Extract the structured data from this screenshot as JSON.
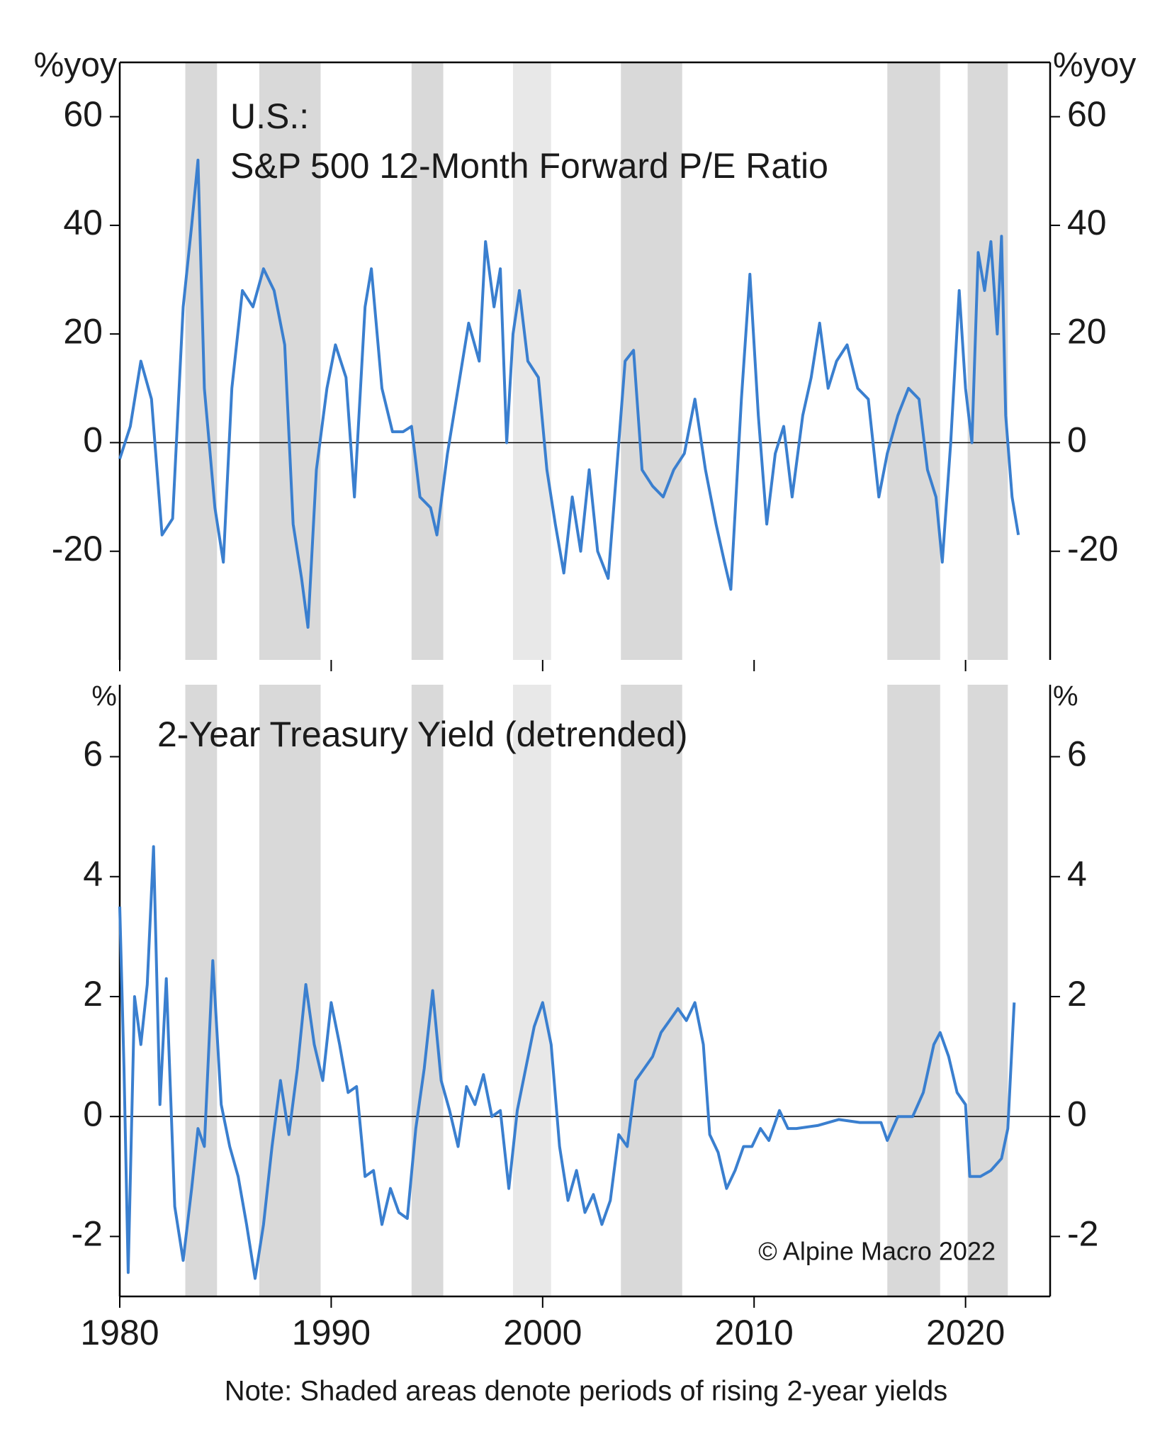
{
  "chart_data": [
    {
      "type": "line",
      "title": [
        "U.S.:",
        "S&P 500 12-Month Forward P/E Ratio"
      ],
      "y_label": "%yoy",
      "xlim": [
        1980,
        2024
      ],
      "ylim": [
        -40,
        70
      ],
      "yticks": [
        -20,
        0,
        20,
        40,
        60
      ],
      "zero_line": true,
      "shaded_periods": [
        {
          "start": 1983.1,
          "end": 1984.6,
          "color": "#d9d9d9"
        },
        {
          "start": 1986.6,
          "end": 1989.5,
          "color": "#d9d9d9"
        },
        {
          "start": 1993.8,
          "end": 1995.3,
          "color": "#d9d9d9"
        },
        {
          "start": 1998.6,
          "end": 2000.4,
          "color": "#e8e8e8"
        },
        {
          "start": 2003.7,
          "end": 2006.6,
          "color": "#d9d9d9"
        },
        {
          "start": 2016.3,
          "end": 2018.8,
          "color": "#d9d9d9"
        },
        {
          "start": 2020.1,
          "end": 2022.0,
          "color": "#d9d9d9"
        }
      ],
      "x": [
        1980,
        1980.5,
        1981,
        1981.5,
        1982,
        1982.5,
        1983,
        1983.4,
        1983.7,
        1984,
        1984.5,
        1984.9,
        1985.3,
        1985.8,
        1986.3,
        1986.8,
        1987.3,
        1987.8,
        1988.2,
        1988.6,
        1988.9,
        1989.3,
        1989.8,
        1990.2,
        1990.7,
        1991.1,
        1991.6,
        1991.9,
        1992.4,
        1992.9,
        1993.4,
        1993.8,
        1994.2,
        1994.7,
        1995,
        1995.5,
        1996,
        1996.5,
        1997,
        1997.3,
        1997.7,
        1998,
        1998.3,
        1998.6,
        1998.9,
        1999.3,
        1999.8,
        2000.2,
        2000.6,
        2001,
        2001.4,
        2001.8,
        2002.2,
        2002.6,
        2003.1,
        2003.5,
        2003.9,
        2004.3,
        2004.7,
        2005.2,
        2005.7,
        2006.2,
        2006.7,
        2007.2,
        2007.7,
        2008.2,
        2008.6,
        2008.9,
        2009.4,
        2009.8,
        2010.2,
        2010.6,
        2011,
        2011.4,
        2011.8,
        2012.3,
        2012.7,
        2013.1,
        2013.5,
        2013.9,
        2014.4,
        2014.9,
        2015.4,
        2015.9,
        2016.3,
        2016.8,
        2017.3,
        2017.8,
        2018.2,
        2018.6,
        2018.9,
        2019.3,
        2019.7,
        2020,
        2020.3,
        2020.6,
        2020.9,
        2021.2,
        2021.5,
        2021.7,
        2021.9,
        2022.2,
        2022.5
      ],
      "series": [
        {
          "color": "#3a7fcf",
          "values": [
            -3,
            3,
            15,
            8,
            -17,
            -14,
            25,
            40,
            52,
            10,
            -12,
            -22,
            10,
            28,
            25,
            32,
            28,
            18,
            -15,
            -25,
            -34,
            -5,
            10,
            18,
            12,
            -10,
            25,
            32,
            10,
            2,
            2,
            3,
            -10,
            -12,
            -17,
            -2,
            10,
            22,
            15,
            37,
            25,
            32,
            0,
            20,
            28,
            15,
            12,
            -5,
            -15,
            -24,
            -10,
            -20,
            -5,
            -20,
            -25,
            -5,
            15,
            17,
            -5,
            -8,
            -10,
            -5,
            -2,
            8,
            -5,
            -15,
            -22,
            -27,
            8,
            31,
            5,
            -15,
            -2,
            3,
            -10,
            5,
            12,
            22,
            10,
            15,
            18,
            10,
            8,
            -10,
            -2,
            5,
            10,
            8,
            -5,
            -10,
            -22,
            0,
            28,
            10,
            0,
            35,
            28,
            37,
            20,
            38,
            5,
            -10,
            -17
          ]
        }
      ]
    },
    {
      "type": "line",
      "title": [
        "2-Year Treasury Yield (detrended)"
      ],
      "y_label": "%",
      "xlim": [
        1980,
        2024
      ],
      "xticks": [
        1980,
        1990,
        2000,
        2010,
        2020
      ],
      "ylim": [
        -3,
        7.2
      ],
      "yticks": [
        -2,
        0,
        2,
        4,
        6
      ],
      "zero_line": true,
      "annotation": "© Alpine Macro 2022",
      "note": "Note: Shaded areas denote periods of rising 2-year yields",
      "shaded_periods": [
        {
          "start": 1983.1,
          "end": 1984.6,
          "color": "#d9d9d9"
        },
        {
          "start": 1986.6,
          "end": 1989.5,
          "color": "#d9d9d9"
        },
        {
          "start": 1993.8,
          "end": 1995.3,
          "color": "#d9d9d9"
        },
        {
          "start": 1998.6,
          "end": 2000.4,
          "color": "#e8e8e8"
        },
        {
          "start": 2003.7,
          "end": 2006.6,
          "color": "#d9d9d9"
        },
        {
          "start": 2016.3,
          "end": 2018.8,
          "color": "#d9d9d9"
        },
        {
          "start": 2020.1,
          "end": 2022.0,
          "color": "#d9d9d9"
        }
      ],
      "x": [
        1980,
        1980.2,
        1980.4,
        1980.7,
        1981,
        1981.3,
        1981.6,
        1981.9,
        1982.2,
        1982.6,
        1983,
        1983.4,
        1983.7,
        1984,
        1984.4,
        1984.8,
        1985.2,
        1985.6,
        1986,
        1986.4,
        1986.8,
        1987.2,
        1987.6,
        1988,
        1988.4,
        1988.8,
        1989.2,
        1989.6,
        1990,
        1990.4,
        1990.8,
        1991.2,
        1991.6,
        1992,
        1992.4,
        1992.8,
        1993.2,
        1993.6,
        1994,
        1994.4,
        1994.8,
        1995.2,
        1995.6,
        1996,
        1996.4,
        1996.8,
        1997.2,
        1997.6,
        1998,
        1998.4,
        1998.8,
        1999.2,
        1999.6,
        2000,
        2000.4,
        2000.8,
        2001.2,
        2001.6,
        2002,
        2002.4,
        2002.8,
        2003.2,
        2003.6,
        2004,
        2004.4,
        2004.8,
        2005.2,
        2005.6,
        2006,
        2006.4,
        2006.8,
        2007.2,
        2007.6,
        2007.9,
        2008.3,
        2008.7,
        2009.1,
        2009.5,
        2009.9,
        2010.3,
        2010.7,
        2011.2,
        2011.6,
        2012,
        2013,
        2014,
        2015,
        2016,
        2016.3,
        2016.8,
        2017.5,
        2018,
        2018.5,
        2018.8,
        2019.2,
        2019.6,
        2020,
        2020.2,
        2020.7,
        2021.2,
        2021.7,
        2022,
        2022.3
      ],
      "series": [
        {
          "color": "#3a7fcf",
          "values": [
            3.5,
            0.8,
            -2.6,
            2.0,
            1.2,
            2.2,
            4.5,
            0.2,
            2.3,
            -1.5,
            -2.4,
            -1.2,
            -0.2,
            -0.5,
            2.6,
            0.2,
            -0.5,
            -1.0,
            -1.8,
            -2.7,
            -1.8,
            -0.5,
            0.6,
            -0.3,
            0.8,
            2.2,
            1.2,
            0.6,
            1.9,
            1.2,
            0.4,
            0.5,
            -1.0,
            -0.9,
            -1.8,
            -1.2,
            -1.6,
            -1.7,
            -0.2,
            0.8,
            2.1,
            0.6,
            0.1,
            -0.5,
            0.5,
            0.2,
            0.7,
            0.0,
            0.1,
            -1.2,
            0.1,
            0.8,
            1.5,
            1.9,
            1.2,
            -0.5,
            -1.4,
            -0.9,
            -1.6,
            -1.3,
            -1.8,
            -1.4,
            -0.3,
            -0.5,
            0.6,
            0.8,
            1.0,
            1.4,
            1.6,
            1.8,
            1.6,
            1.9,
            1.2,
            -0.3,
            -0.6,
            -1.2,
            -0.9,
            -0.5,
            -0.5,
            -0.2,
            -0.4,
            0.1,
            -0.2,
            -0.2,
            -0.15,
            -0.05,
            -0.1,
            -0.1,
            -0.4,
            0.0,
            0.0,
            0.4,
            1.2,
            1.4,
            1.0,
            0.4,
            0.2,
            -1.0,
            -1.0,
            -0.9,
            -0.7,
            -0.2,
            1.9
          ]
        }
      ]
    }
  ]
}
